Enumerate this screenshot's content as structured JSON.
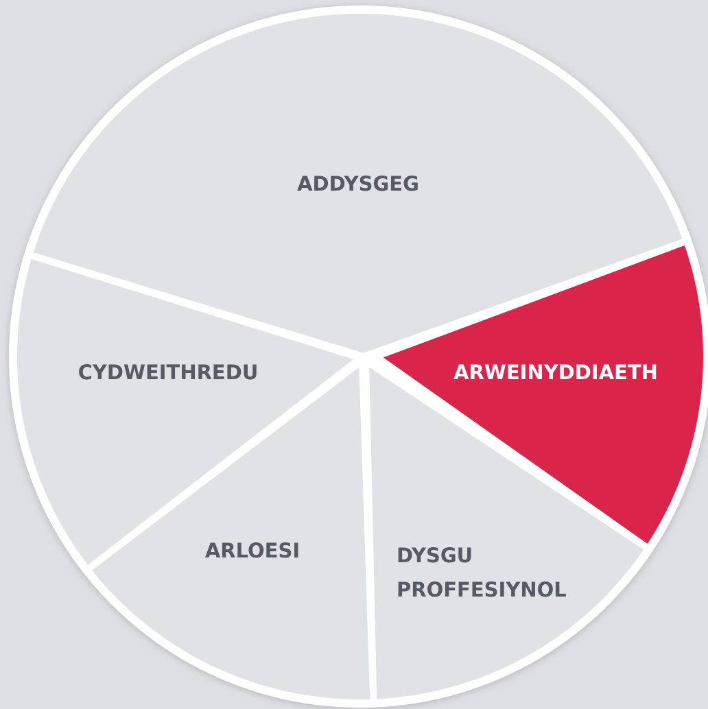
{
  "segments": [
    {
      "lines": [
        "ADDYSGEG"
      ],
      "selected": false
    },
    {
      "lines": [
        "ARWEINYDDIAETH"
      ],
      "selected": true
    },
    {
      "lines": [
        "DYSGU",
        "PROFFESIYNOL"
      ],
      "selected": false
    },
    {
      "lines": [
        "ARLOESI"
      ],
      "selected": false
    },
    {
      "lines": [
        "CYDWEITHREDU"
      ],
      "selected": false
    }
  ]
}
